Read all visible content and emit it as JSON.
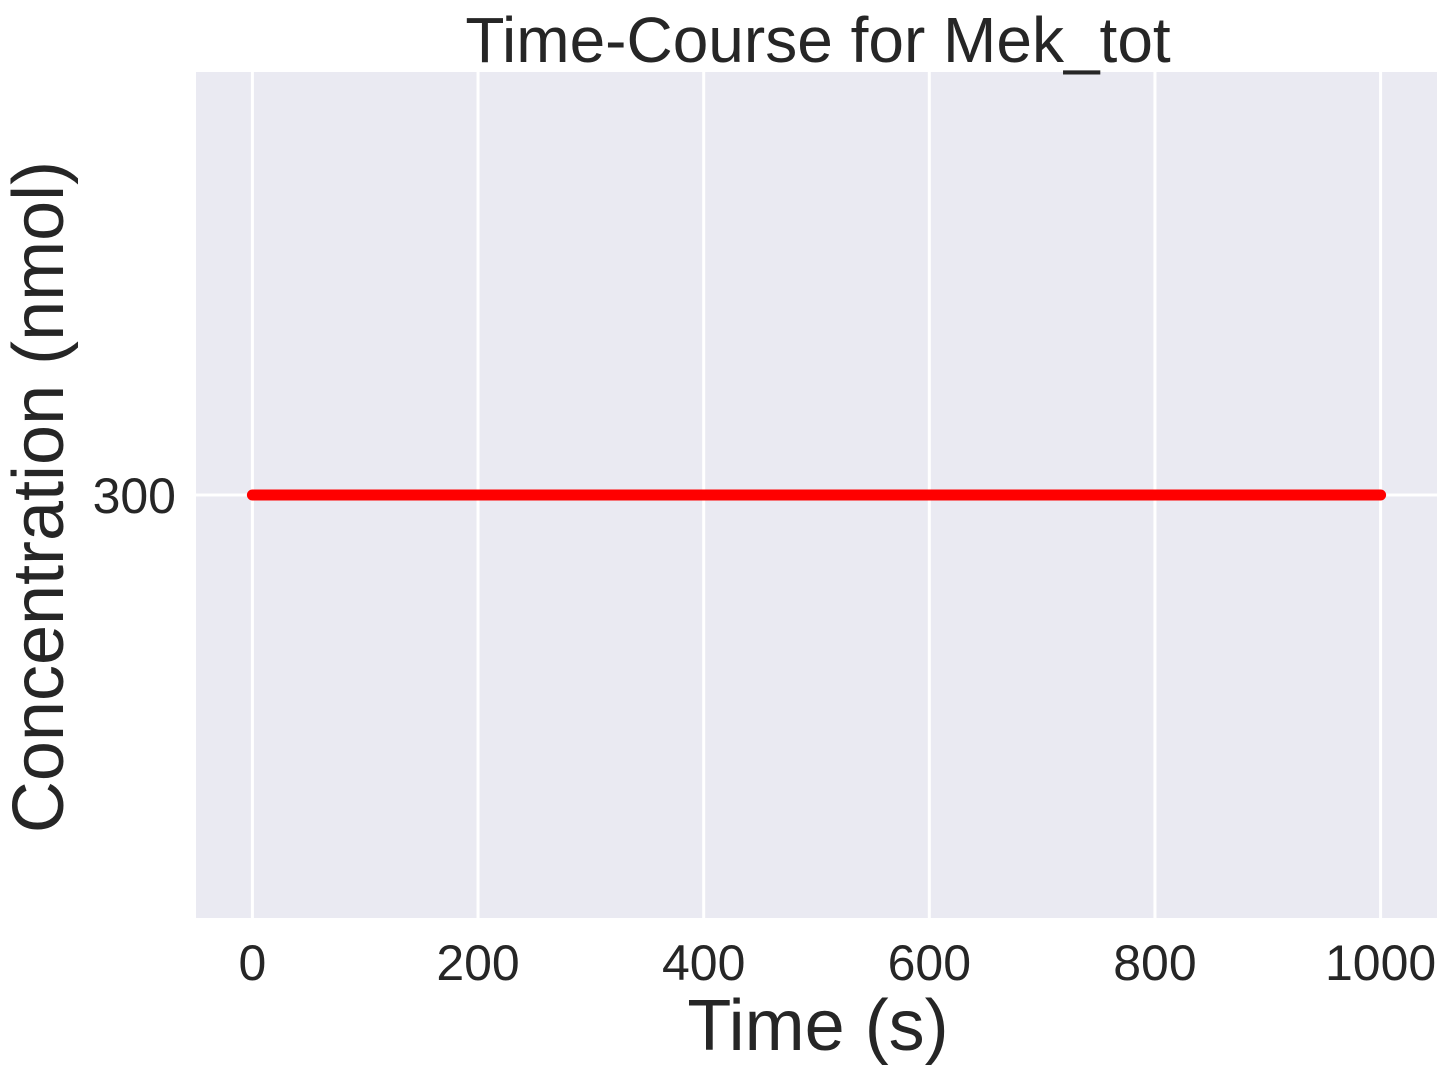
{
  "chart_data": {
    "type": "line",
    "title": "Time-Course for Mek_tot",
    "xlabel": "Time (s)",
    "ylabel": "Concentration (nmol)",
    "xlim": [
      -50,
      1050
    ],
    "ylim": [
      299.25,
      300.75
    ],
    "x_ticks": [
      0,
      200,
      400,
      600,
      800,
      1000
    ],
    "x_tick_labels": [
      "0",
      "200",
      "400",
      "600",
      "800",
      "1000"
    ],
    "y_ticks": [
      300
    ],
    "y_tick_labels": [
      "300"
    ],
    "grid": true,
    "legend": "none",
    "series": [
      {
        "color": "#ff0000",
        "x": [
          0,
          100,
          200,
          300,
          400,
          500,
          600,
          700,
          800,
          900,
          1000
        ],
        "y": [
          300,
          300,
          300,
          300,
          300,
          300,
          300,
          300,
          300,
          300,
          300
        ]
      }
    ],
    "colors": {
      "plot_background": "#eaeaf2",
      "grid": "#ffffff",
      "text": "#262626"
    }
  }
}
